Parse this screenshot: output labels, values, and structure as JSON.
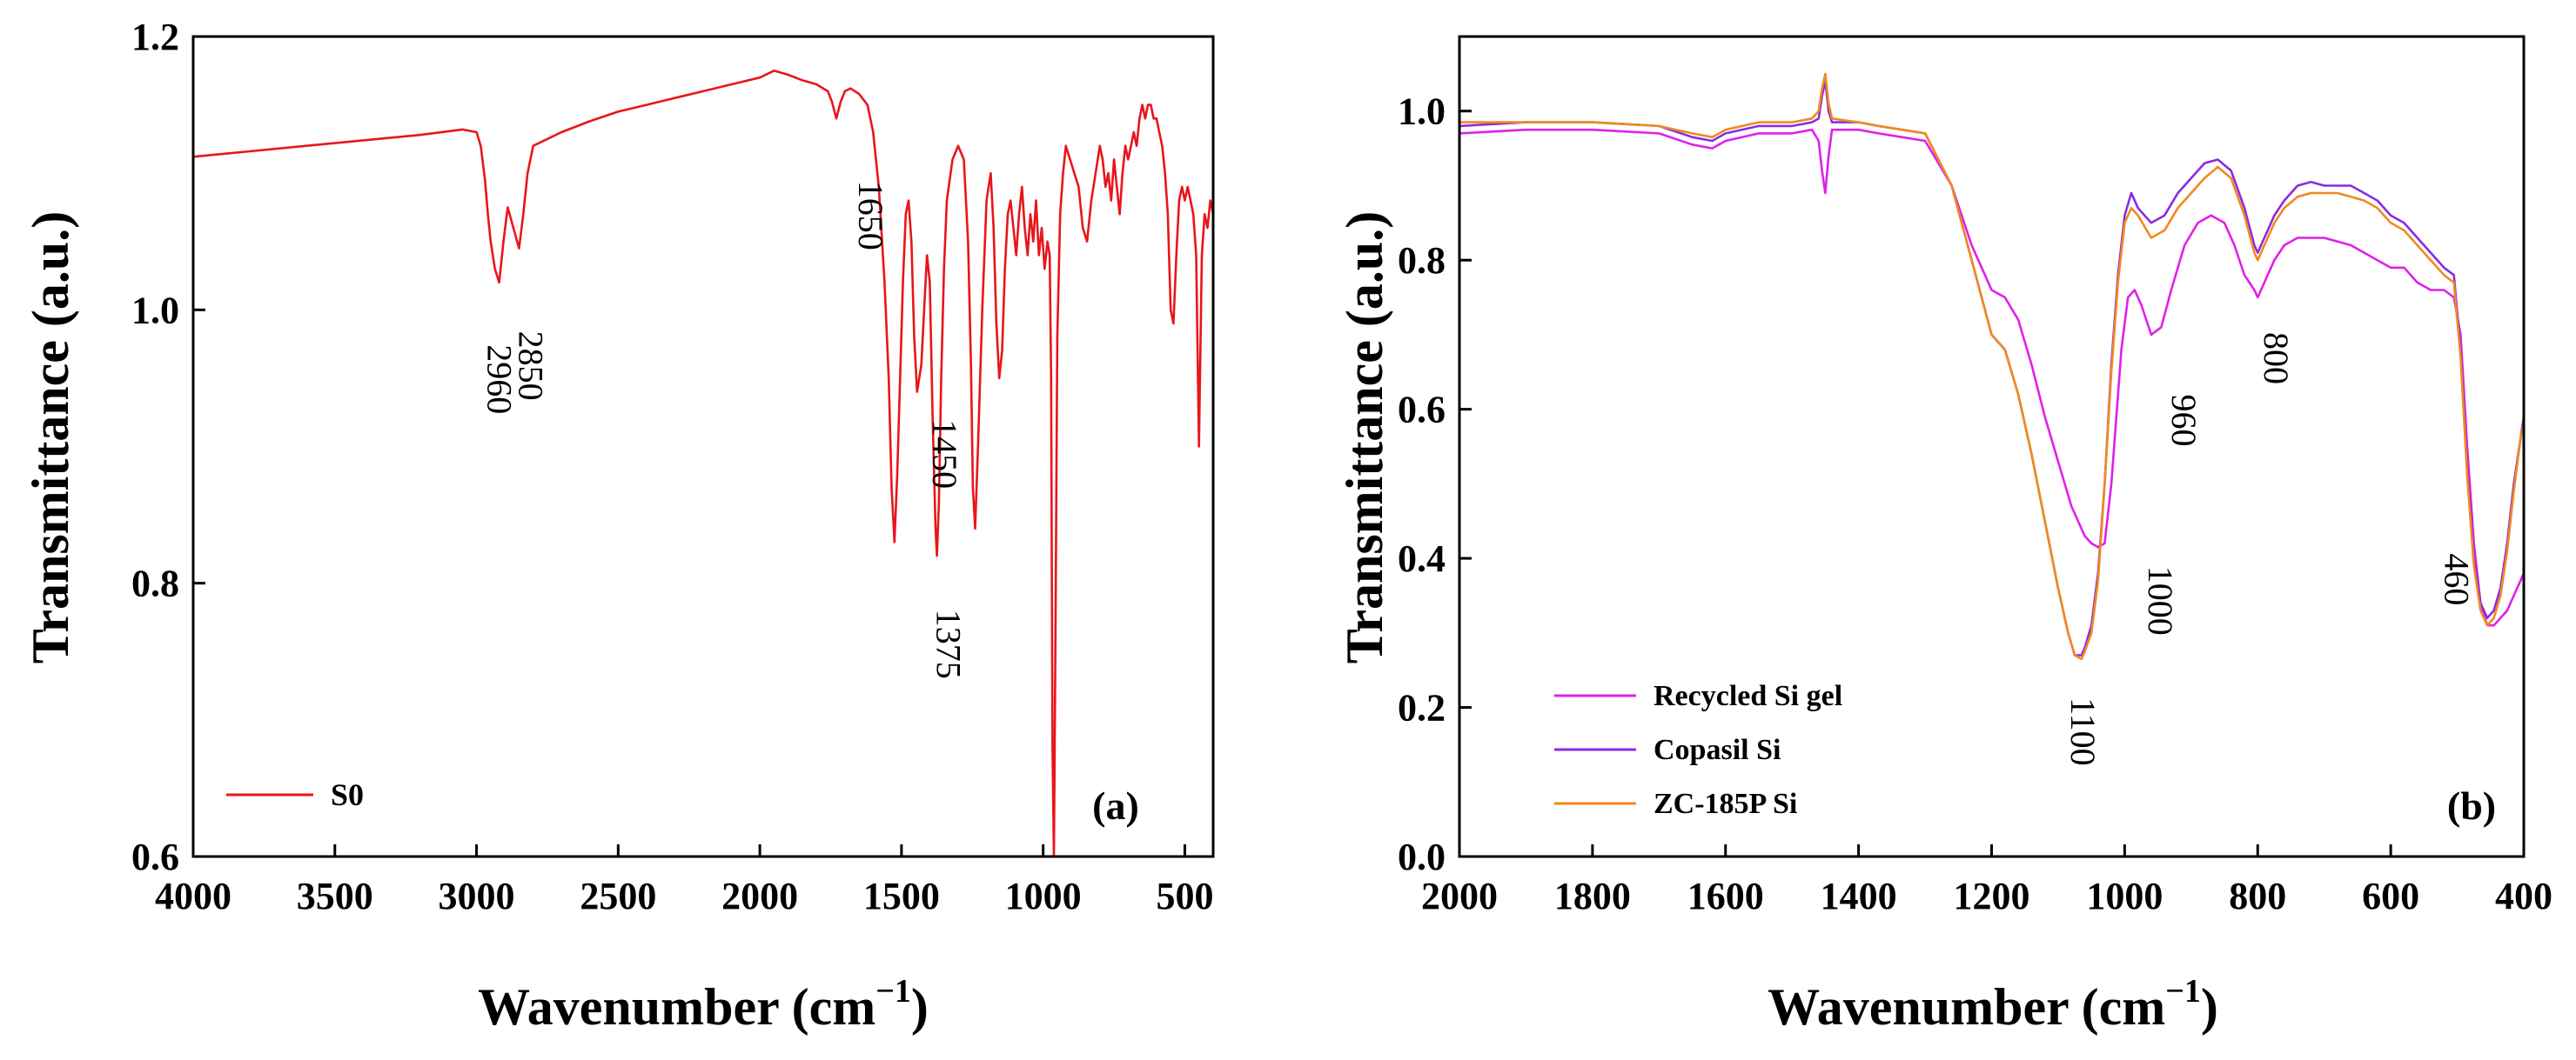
{
  "chart_data": [
    {
      "type": "line",
      "panel_label": "(a)",
      "xlabel": "Wavenumber (cm",
      "xlabel_sup": "−1",
      "xlabel_close": ")",
      "ylabel": "Transmittance (a.u.)",
      "xlim": [
        4000,
        400
      ],
      "ylim": [
        0.6,
        1.2
      ],
      "xticks": [
        4000,
        3500,
        3000,
        2500,
        2000,
        1500,
        1000,
        500
      ],
      "yticks": [
        0.6,
        0.8,
        1.0,
        1.2
      ],
      "xtick_labels": [
        "4000",
        "3500",
        "3000",
        "2500",
        "2000",
        "1500",
        "1000",
        "500"
      ],
      "ytick_labels": [
        "0.6",
        "0.8",
        "1.0",
        "1.2"
      ],
      "legend_position": "bottom-left",
      "series": [
        {
          "name": "S0",
          "color": "#e8161b",
          "x": [
            4000,
            3800,
            3600,
            3400,
            3200,
            3050,
            3000,
            2985,
            2970,
            2960,
            2950,
            2935,
            2920,
            2905,
            2890,
            2870,
            2850,
            2835,
            2820,
            2800,
            2700,
            2600,
            2500,
            2400,
            2300,
            2200,
            2100,
            2000,
            1950,
            1900,
            1850,
            1800,
            1760,
            1745,
            1730,
            1715,
            1700,
            1680,
            1650,
            1620,
            1600,
            1580,
            1560,
            1545,
            1535,
            1525,
            1515,
            1505,
            1495,
            1485,
            1475,
            1465,
            1455,
            1445,
            1430,
            1420,
            1410,
            1400,
            1390,
            1380,
            1375,
            1368,
            1360,
            1350,
            1340,
            1320,
            1300,
            1280,
            1265,
            1255,
            1248,
            1240,
            1230,
            1215,
            1200,
            1185,
            1175,
            1165,
            1155,
            1145,
            1135,
            1125,
            1115,
            1105,
            1095,
            1085,
            1075,
            1065,
            1055,
            1045,
            1035,
            1025,
            1015,
            1005,
            995,
            985,
            977,
            972,
            967,
            962,
            957,
            950,
            940,
            930,
            920,
            905,
            890,
            875,
            860,
            845,
            830,
            815,
            800,
            790,
            780,
            770,
            760,
            750,
            740,
            730,
            720,
            710,
            700,
            690,
            680,
            670,
            660,
            650,
            640,
            630,
            620,
            610,
            600,
            590,
            580,
            570,
            560,
            550,
            540,
            530,
            520,
            510,
            500,
            490,
            480,
            470,
            460,
            450,
            440,
            430,
            420,
            410,
            400
          ],
          "y": [
            1.112,
            1.116,
            1.12,
            1.124,
            1.128,
            1.132,
            1.13,
            1.12,
            1.095,
            1.07,
            1.05,
            1.03,
            1.02,
            1.05,
            1.075,
            1.06,
            1.045,
            1.07,
            1.1,
            1.12,
            1.13,
            1.138,
            1.145,
            1.15,
            1.155,
            1.16,
            1.165,
            1.17,
            1.175,
            1.172,
            1.168,
            1.165,
            1.16,
            1.152,
            1.14,
            1.152,
            1.16,
            1.162,
            1.158,
            1.15,
            1.13,
            1.09,
            1.02,
            0.95,
            0.87,
            0.83,
            0.88,
            0.95,
            1.02,
            1.07,
            1.08,
            1.05,
            0.98,
            0.94,
            0.96,
            1.0,
            1.04,
            1.02,
            0.92,
            0.84,
            0.82,
            0.86,
            0.95,
            1.03,
            1.08,
            1.11,
            1.12,
            1.11,
            1.05,
            0.96,
            0.87,
            0.84,
            0.9,
            1.0,
            1.08,
            1.1,
            1.06,
            0.99,
            0.95,
            0.97,
            1.03,
            1.07,
            1.08,
            1.06,
            1.04,
            1.07,
            1.09,
            1.06,
            1.04,
            1.07,
            1.05,
            1.08,
            1.04,
            1.06,
            1.03,
            1.05,
            1.04,
            0.95,
            0.68,
            0.6,
            0.75,
            0.98,
            1.07,
            1.1,
            1.12,
            1.11,
            1.1,
            1.09,
            1.06,
            1.05,
            1.08,
            1.1,
            1.12,
            1.11,
            1.09,
            1.1,
            1.08,
            1.11,
            1.09,
            1.07,
            1.1,
            1.12,
            1.11,
            1.12,
            1.13,
            1.12,
            1.14,
            1.15,
            1.14,
            1.15,
            1.15,
            1.14,
            1.14,
            1.13,
            1.12,
            1.1,
            1.07,
            1.0,
            0.99,
            1.04,
            1.08,
            1.09,
            1.08,
            1.09,
            1.08,
            1.07,
            1.04,
            0.9,
            1.04,
            1.07,
            1.06,
            1.08,
            1.07
          ]
        }
      ],
      "annotations": [
        {
          "text": "2960",
          "x": 2960,
          "y": 1.0
        },
        {
          "text": "2850",
          "x": 2850,
          "y": 1.01
        },
        {
          "text": "1650",
          "x": 1650,
          "y": 1.12
        },
        {
          "text": "1450",
          "x": 1450,
          "y": 0.92
        },
        {
          "text": "1375",
          "x": 1375,
          "y": 0.8
        }
      ]
    },
    {
      "type": "line",
      "panel_label": "(b)",
      "xlabel": "Wavenumber (cm",
      "xlabel_sup": "−1",
      "xlabel_close": ")",
      "ylabel": "Transmittance (a.u.)",
      "xlim": [
        2000,
        400
      ],
      "ylim": [
        0.0,
        1.1
      ],
      "xticks": [
        2000,
        1800,
        1600,
        1400,
        1200,
        1000,
        800,
        600,
        400
      ],
      "yticks": [
        0.0,
        0.2,
        0.4,
        0.6,
        0.8,
        1.0
      ],
      "xtick_labels": [
        "2000",
        "1800",
        "1600",
        "1400",
        "1200",
        "1000",
        "800",
        "600",
        "400"
      ],
      "ytick_labels": [
        "0.0",
        "0.2",
        "0.4",
        "0.6",
        "0.8",
        "1.0"
      ],
      "legend_position": "bottom-left",
      "series": [
        {
          "name": "Recycled Si gel",
          "color": "#e020e8",
          "x": [
            2000,
            1900,
            1800,
            1700,
            1650,
            1620,
            1600,
            1550,
            1500,
            1470,
            1460,
            1455,
            1450,
            1445,
            1440,
            1400,
            1370,
            1300,
            1260,
            1230,
            1200,
            1180,
            1160,
            1140,
            1120,
            1100,
            1080,
            1060,
            1050,
            1040,
            1030,
            1020,
            1005,
            995,
            985,
            975,
            960,
            945,
            930,
            910,
            890,
            870,
            850,
            835,
            820,
            805,
            800,
            790,
            775,
            760,
            740,
            720,
            700,
            680,
            660,
            640,
            620,
            600,
            580,
            560,
            540,
            520,
            505,
            495,
            485,
            475,
            465,
            455,
            445,
            435,
            425,
            415,
            405,
            400
          ],
          "y": [
            0.97,
            0.975,
            0.975,
            0.97,
            0.955,
            0.95,
            0.96,
            0.97,
            0.97,
            0.975,
            0.96,
            0.92,
            0.89,
            0.94,
            0.975,
            0.975,
            0.97,
            0.96,
            0.9,
            0.82,
            0.76,
            0.75,
            0.72,
            0.66,
            0.59,
            0.53,
            0.47,
            0.43,
            0.42,
            0.415,
            0.42,
            0.5,
            0.68,
            0.75,
            0.76,
            0.74,
            0.7,
            0.71,
            0.76,
            0.82,
            0.85,
            0.86,
            0.85,
            0.82,
            0.78,
            0.76,
            0.75,
            0.77,
            0.8,
            0.82,
            0.83,
            0.83,
            0.83,
            0.825,
            0.82,
            0.81,
            0.8,
            0.79,
            0.79,
            0.77,
            0.76,
            0.76,
            0.75,
            0.7,
            0.55,
            0.42,
            0.34,
            0.31,
            0.31,
            0.32,
            0.33,
            0.35,
            0.37,
            0.38
          ]
        },
        {
          "name": "Copasil Si",
          "color": "#8a2be2",
          "x": [
            2000,
            1900,
            1800,
            1700,
            1650,
            1620,
            1600,
            1550,
            1500,
            1470,
            1460,
            1455,
            1450,
            1445,
            1440,
            1400,
            1370,
            1300,
            1260,
            1230,
            1200,
            1180,
            1160,
            1140,
            1120,
            1100,
            1085,
            1075,
            1065,
            1060,
            1050,
            1040,
            1030,
            1020,
            1010,
            1000,
            990,
            980,
            960,
            940,
            920,
            900,
            880,
            860,
            840,
            820,
            805,
            800,
            790,
            775,
            760,
            740,
            720,
            700,
            680,
            660,
            640,
            620,
            600,
            580,
            560,
            540,
            520,
            505,
            495,
            485,
            475,
            465,
            455,
            445,
            435,
            425,
            415,
            405,
            400
          ],
          "y": [
            0.98,
            0.985,
            0.985,
            0.98,
            0.965,
            0.96,
            0.97,
            0.98,
            0.98,
            0.985,
            0.99,
            1.02,
            1.04,
            1.0,
            0.985,
            0.985,
            0.98,
            0.97,
            0.9,
            0.8,
            0.7,
            0.68,
            0.62,
            0.54,
            0.45,
            0.36,
            0.3,
            0.27,
            0.27,
            0.28,
            0.31,
            0.38,
            0.5,
            0.66,
            0.78,
            0.86,
            0.89,
            0.87,
            0.85,
            0.86,
            0.89,
            0.91,
            0.93,
            0.935,
            0.92,
            0.87,
            0.82,
            0.81,
            0.83,
            0.86,
            0.88,
            0.9,
            0.905,
            0.9,
            0.9,
            0.9,
            0.89,
            0.88,
            0.86,
            0.85,
            0.83,
            0.81,
            0.79,
            0.78,
            0.68,
            0.52,
            0.4,
            0.34,
            0.32,
            0.33,
            0.36,
            0.42,
            0.5,
            0.56,
            0.59
          ]
        },
        {
          "name": "ZC-185P Si",
          "color": "#f08a1e",
          "x": [
            2000,
            1900,
            1800,
            1700,
            1650,
            1620,
            1600,
            1550,
            1500,
            1470,
            1460,
            1455,
            1450,
            1445,
            1440,
            1400,
            1370,
            1300,
            1260,
            1230,
            1200,
            1180,
            1160,
            1140,
            1120,
            1100,
            1085,
            1075,
            1065,
            1060,
            1050,
            1040,
            1030,
            1020,
            1010,
            1000,
            990,
            980,
            960,
            940,
            920,
            900,
            880,
            860,
            840,
            820,
            805,
            800,
            790,
            775,
            760,
            740,
            720,
            700,
            680,
            660,
            640,
            620,
            600,
            580,
            560,
            540,
            520,
            505,
            495,
            485,
            475,
            465,
            455,
            445,
            435,
            425,
            415,
            405,
            400
          ],
          "y": [
            0.985,
            0.985,
            0.985,
            0.98,
            0.97,
            0.965,
            0.975,
            0.985,
            0.985,
            0.99,
            1.0,
            1.03,
            1.05,
            1.01,
            0.99,
            0.985,
            0.98,
            0.97,
            0.9,
            0.8,
            0.7,
            0.68,
            0.62,
            0.54,
            0.45,
            0.36,
            0.3,
            0.27,
            0.265,
            0.275,
            0.3,
            0.37,
            0.5,
            0.65,
            0.77,
            0.85,
            0.87,
            0.86,
            0.83,
            0.84,
            0.87,
            0.89,
            0.91,
            0.925,
            0.91,
            0.86,
            0.81,
            0.8,
            0.82,
            0.85,
            0.87,
            0.885,
            0.89,
            0.89,
            0.89,
            0.885,
            0.88,
            0.87,
            0.85,
            0.84,
            0.82,
            0.8,
            0.78,
            0.77,
            0.67,
            0.51,
            0.39,
            0.33,
            0.31,
            0.32,
            0.35,
            0.41,
            0.49,
            0.56,
            0.58
          ]
        }
      ],
      "annotations": [
        {
          "text": "1100",
          "x": 1080,
          "y": 0.26
        },
        {
          "text": "1000",
          "x": 990,
          "y": 0.39
        },
        {
          "text": "960",
          "x": 955,
          "y": 0.62
        },
        {
          "text": "800",
          "x": 790,
          "y": 0.75
        },
        {
          "text": "460",
          "x": 505,
          "y": 0.43
        }
      ]
    }
  ]
}
